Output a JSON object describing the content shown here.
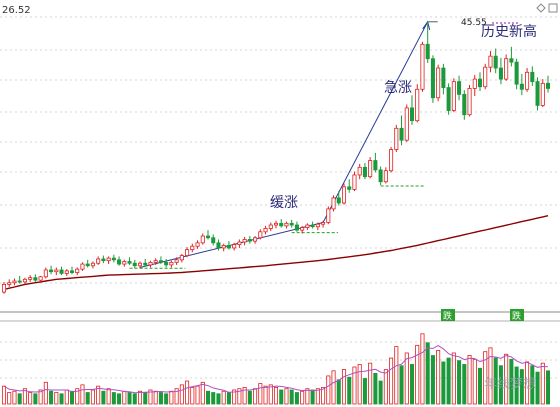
{
  "chart_data": {
    "type": "candlestick",
    "price_label": "26.52",
    "peak_label": "45.55",
    "annotations": {
      "slow_rise": "缓涨",
      "sharp_rise": "急涨",
      "all_time_high": "历史新高"
    },
    "watermark": "年线梦想",
    "volume_markers": [
      "跌",
      "跌"
    ],
    "candles": [
      [
        13.7,
        14.9,
        13.5,
        14.6
      ],
      [
        14.6,
        15.2,
        14.3,
        14.8
      ],
      [
        14.8,
        15.3,
        14.5,
        15.0
      ],
      [
        15.0,
        15.6,
        14.7,
        14.9
      ],
      [
        14.9,
        15.4,
        14.6,
        15.2
      ],
      [
        15.2,
        15.7,
        14.9,
        15.4
      ],
      [
        15.4,
        15.8,
        14.9,
        15.1
      ],
      [
        15.1,
        15.6,
        14.8,
        15.5
      ],
      [
        15.5,
        16.6,
        15.3,
        16.3
      ],
      [
        16.3,
        16.8,
        15.8,
        16.1
      ],
      [
        16.1,
        16.6,
        15.7,
        16.3
      ],
      [
        16.3,
        16.7,
        15.7,
        15.9
      ],
      [
        15.9,
        16.4,
        15.6,
        16.2
      ],
      [
        16.2,
        16.7,
        15.8,
        16.0
      ],
      [
        16.0,
        16.6,
        15.7,
        16.4
      ],
      [
        16.4,
        17.2,
        16.2,
        17.0
      ],
      [
        17.0,
        17.5,
        16.6,
        16.8
      ],
      [
        16.8,
        17.3,
        16.5,
        17.1
      ],
      [
        17.1,
        17.9,
        16.9,
        17.6
      ],
      [
        17.6,
        18.0,
        17.1,
        17.4
      ],
      [
        17.4,
        17.9,
        17.0,
        17.7
      ],
      [
        17.7,
        18.1,
        17.2,
        17.5
      ],
      [
        17.5,
        17.9,
        16.8,
        17.0
      ],
      [
        17.0,
        17.5,
        16.7,
        17.3
      ],
      [
        17.3,
        17.8,
        16.9,
        17.1
      ],
      [
        17.1,
        17.5,
        16.5,
        16.8
      ],
      [
        16.8,
        17.3,
        16.5,
        17.1
      ],
      [
        17.1,
        17.6,
        16.7,
        16.9
      ],
      [
        16.9,
        17.4,
        16.6,
        17.2
      ],
      [
        17.2,
        17.7,
        16.9,
        17.4
      ],
      [
        17.4,
        17.9,
        17.0,
        17.2
      ],
      [
        17.2,
        17.6,
        16.6,
        16.9
      ],
      [
        16.9,
        17.4,
        16.6,
        17.2
      ],
      [
        17.2,
        17.8,
        16.9,
        17.5
      ],
      [
        17.5,
        18.2,
        17.2,
        18.0
      ],
      [
        18.0,
        19.0,
        17.8,
        18.7
      ],
      [
        18.7,
        19.4,
        18.4,
        19.1
      ],
      [
        19.1,
        19.8,
        18.8,
        19.5
      ],
      [
        19.5,
        20.6,
        19.3,
        20.3
      ],
      [
        20.3,
        21.0,
        19.9,
        20.1
      ],
      [
        20.1,
        20.5,
        19.2,
        19.5
      ],
      [
        19.5,
        19.9,
        18.6,
        18.9
      ],
      [
        18.9,
        19.4,
        18.5,
        19.2
      ],
      [
        19.2,
        19.7,
        18.7,
        18.9
      ],
      [
        18.9,
        19.5,
        18.6,
        19.3
      ],
      [
        19.3,
        19.9,
        18.9,
        19.6
      ],
      [
        19.6,
        20.2,
        19.2,
        19.9
      ],
      [
        19.9,
        20.3,
        19.4,
        19.7
      ],
      [
        19.7,
        20.3,
        19.4,
        20.1
      ],
      [
        20.1,
        21.1,
        19.9,
        20.8
      ],
      [
        20.8,
        21.5,
        20.5,
        21.2
      ],
      [
        21.2,
        21.9,
        20.9,
        21.6
      ],
      [
        21.6,
        22.1,
        21.2,
        21.8
      ],
      [
        21.8,
        22.3,
        21.3,
        21.5
      ],
      [
        21.5,
        22.0,
        21.2,
        21.8
      ],
      [
        21.8,
        22.2,
        21.3,
        21.6
      ],
      [
        21.6,
        22.0,
        20.8,
        21.0
      ],
      [
        21.0,
        21.5,
        20.6,
        21.3
      ],
      [
        21.3,
        21.8,
        21.0,
        21.6
      ],
      [
        21.6,
        22.0,
        21.2,
        21.4
      ],
      [
        21.4,
        21.9,
        21.0,
        21.7
      ],
      [
        21.7,
        22.1,
        21.3,
        21.9
      ],
      [
        21.9,
        23.8,
        21.7,
        23.5
      ],
      [
        23.5,
        25.1,
        23.2,
        24.8
      ],
      [
        24.8,
        25.6,
        23.9,
        24.2
      ],
      [
        24.2,
        26.5,
        24.0,
        26.1
      ],
      [
        26.1,
        27.0,
        25.4,
        25.8
      ],
      [
        25.8,
        27.9,
        25.6,
        27.5
      ],
      [
        27.5,
        28.8,
        27.0,
        28.4
      ],
      [
        28.4,
        28.9,
        27.0,
        27.3
      ],
      [
        27.3,
        29.6,
        27.1,
        29.2
      ],
      [
        29.2,
        30.1,
        27.8,
        28.1
      ],
      [
        28.1,
        28.5,
        26.3,
        26.7
      ],
      [
        26.7,
        28.4,
        26.5,
        28.0
      ],
      [
        28.0,
        30.8,
        27.8,
        30.5
      ],
      [
        30.5,
        33.4,
        30.2,
        33.0
      ],
      [
        33.0,
        34.5,
        31.0,
        31.6
      ],
      [
        31.6,
        35.8,
        31.4,
        35.4
      ],
      [
        35.4,
        36.9,
        33.4,
        33.9
      ],
      [
        33.9,
        38.2,
        33.7,
        37.6
      ],
      [
        37.6,
        43.2,
        37.3,
        42.9
      ],
      [
        42.9,
        45.55,
        40.7,
        41.2
      ],
      [
        41.2,
        41.6,
        36.0,
        36.6
      ],
      [
        36.6,
        40.5,
        36.2,
        40.1
      ],
      [
        40.1,
        40.6,
        37.0,
        37.8
      ],
      [
        37.8,
        38.3,
        34.6,
        35.1
      ],
      [
        35.1,
        38.9,
        34.9,
        38.5
      ],
      [
        38.5,
        39.2,
        36.3,
        37.0
      ],
      [
        37.0,
        37.5,
        34.0,
        34.6
      ],
      [
        34.6,
        38.1,
        34.4,
        37.7
      ],
      [
        37.7,
        39.3,
        36.8,
        38.8
      ],
      [
        38.8,
        39.6,
        37.4,
        37.9
      ],
      [
        37.9,
        40.6,
        37.6,
        40.2
      ],
      [
        40.2,
        42.1,
        39.6,
        41.5
      ],
      [
        41.5,
        42.4,
        39.5,
        40.1
      ],
      [
        40.1,
        41.3,
        38.2,
        38.8
      ],
      [
        38.8,
        41.7,
        38.6,
        41.2
      ],
      [
        41.2,
        42.6,
        40.3,
        40.8
      ],
      [
        40.8,
        41.2,
        37.6,
        38.2
      ],
      [
        38.2,
        39.4,
        36.9,
        37.6
      ],
      [
        37.6,
        40.1,
        37.3,
        39.6
      ],
      [
        39.6,
        40.3,
        38.0,
        38.5
      ],
      [
        38.5,
        39.0,
        35.1,
        35.7
      ],
      [
        35.7,
        38.8,
        35.5,
        38.3
      ],
      [
        38.3,
        39.2,
        37.2,
        37.7
      ]
    ],
    "ma": [
      14.0,
      14.15,
      14.3,
      14.45,
      14.6,
      14.7,
      14.8,
      14.9,
      15.0,
      15.1,
      15.2,
      15.25,
      15.3,
      15.35,
      15.4,
      15.45,
      15.5,
      15.55,
      15.6,
      15.65,
      15.7,
      15.72,
      15.74,
      15.76,
      15.78,
      15.8,
      15.82,
      15.84,
      15.86,
      15.88,
      15.9,
      15.92,
      15.95,
      15.98,
      16.0,
      16.05,
      16.1,
      16.15,
      16.2,
      16.25,
      16.3,
      16.35,
      16.4,
      16.45,
      16.5,
      16.55,
      16.6,
      16.65,
      16.7,
      16.75,
      16.8,
      16.86,
      16.92,
      16.98,
      17.04,
      17.1,
      17.16,
      17.22,
      17.28,
      17.34,
      17.4,
      17.47,
      17.54,
      17.62,
      17.7,
      17.78,
      17.86,
      17.94,
      18.02,
      18.1,
      18.2,
      18.3,
      18.4,
      18.5,
      18.6,
      18.72,
      18.84,
      18.96,
      19.08,
      19.2,
      19.34,
      19.48,
      19.62,
      19.76,
      19.9,
      20.04,
      20.18,
      20.32,
      20.46,
      20.6,
      20.74,
      20.88,
      21.02,
      21.16,
      21.3,
      21.44,
      21.58,
      21.72,
      21.86,
      22.0,
      22.14,
      22.28,
      22.42,
      22.56,
      22.7
    ],
    "volume": [
      14,
      9,
      10,
      8,
      12,
      9,
      8,
      11,
      17,
      10,
      9,
      8,
      11,
      10,
      12,
      15,
      9,
      11,
      14,
      10,
      12,
      9,
      8,
      10,
      9,
      8,
      10,
      9,
      11,
      10,
      9,
      8,
      10,
      12,
      15,
      18,
      13,
      14,
      17,
      10,
      9,
      8,
      10,
      9,
      11,
      12,
      13,
      10,
      12,
      16,
      14,
      15,
      13,
      11,
      12,
      11,
      9,
      10,
      12,
      11,
      12,
      13,
      22,
      26,
      19,
      27,
      21,
      29,
      31,
      20,
      32,
      24,
      18,
      27,
      36,
      45,
      30,
      40,
      31,
      46,
      55,
      48,
      38,
      42,
      33,
      36,
      40,
      34,
      31,
      38,
      35,
      28,
      41,
      44,
      36,
      30,
      39,
      35,
      29,
      27,
      33,
      30,
      25,
      32,
      26
    ]
  }
}
